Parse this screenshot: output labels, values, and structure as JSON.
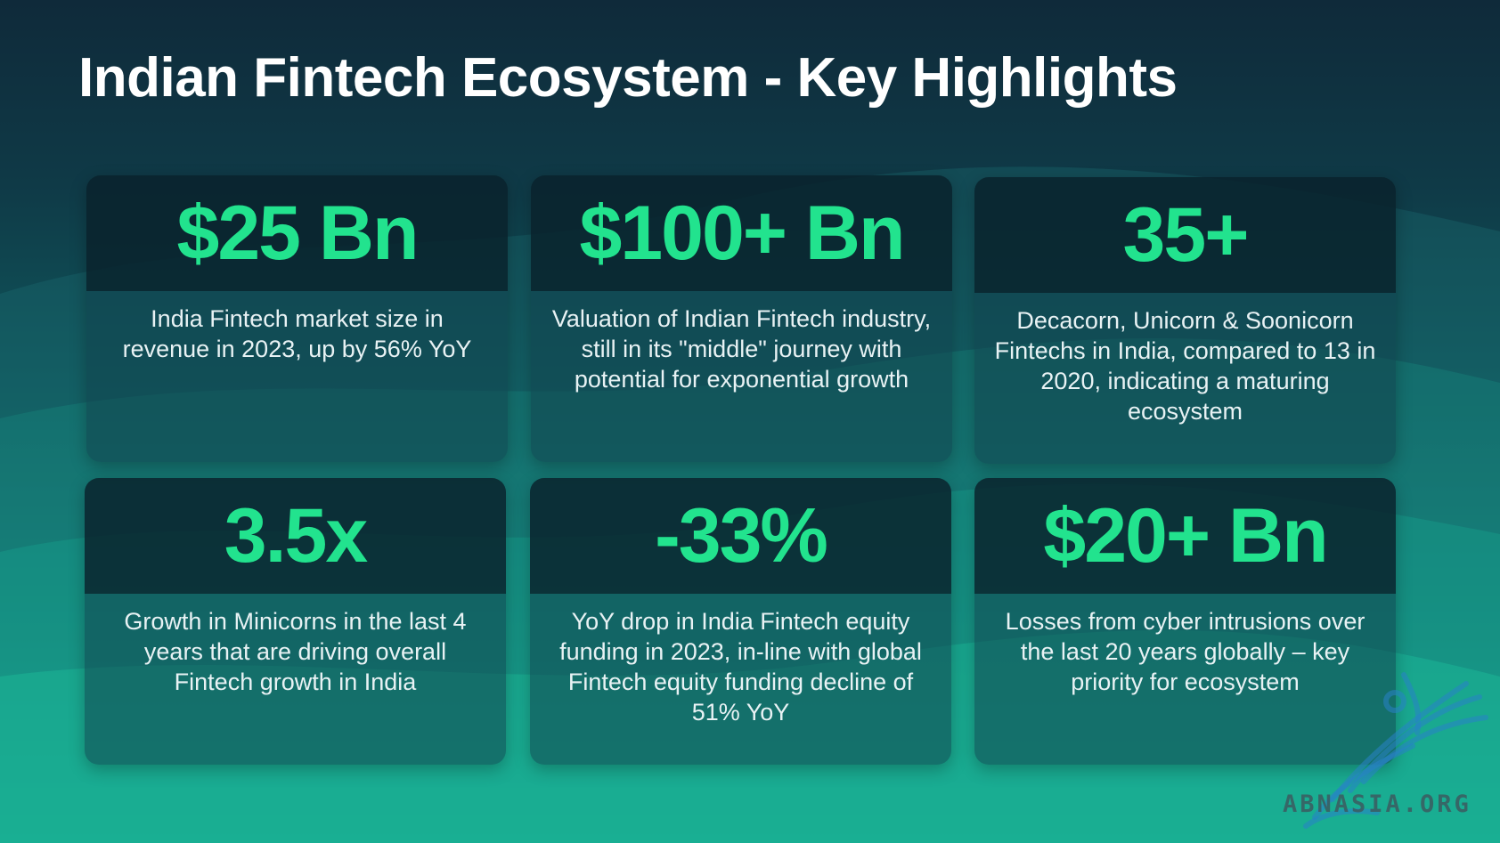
{
  "slide": {
    "title": "Indian Fintech Ecosystem - Key Highlights"
  },
  "cards": [
    {
      "value": "$25 Bn",
      "description": "India Fintech market size in revenue in 2023, up by 56% YoY"
    },
    {
      "value": "$100+ Bn",
      "description": "Valuation of Indian Fintech industry, still in its \"middle\" journey with potential for exponential growth"
    },
    {
      "value": "35+",
      "description": "Decacorn, Unicorn & Soonicorn Fintechs in India, compared to 13 in 2020, indicating a maturing ecosystem"
    },
    {
      "value": "3.5x",
      "description": "Growth in Minicorns in the last 4 years that are driving overall Fintech growth in India"
    },
    {
      "value": "-33%",
      "description": "YoY drop in India Fintech equity funding in 2023, in-line with global Fintech equity funding decline of 51% YoY"
    },
    {
      "value": "$20+ Bn",
      "description": "Losses from cyber intrusions over the last 20 years globally – key priority for ecosystem"
    }
  ],
  "watermark": {
    "text": "ABNASIA.ORG",
    "icon": "griffin-logo-icon"
  },
  "colors": {
    "accent": "#22e38e",
    "title": "#ffffff",
    "text": "#e8f2f4",
    "bg_top": "#0f2a3a",
    "bg_bottom": "#18c79e"
  }
}
